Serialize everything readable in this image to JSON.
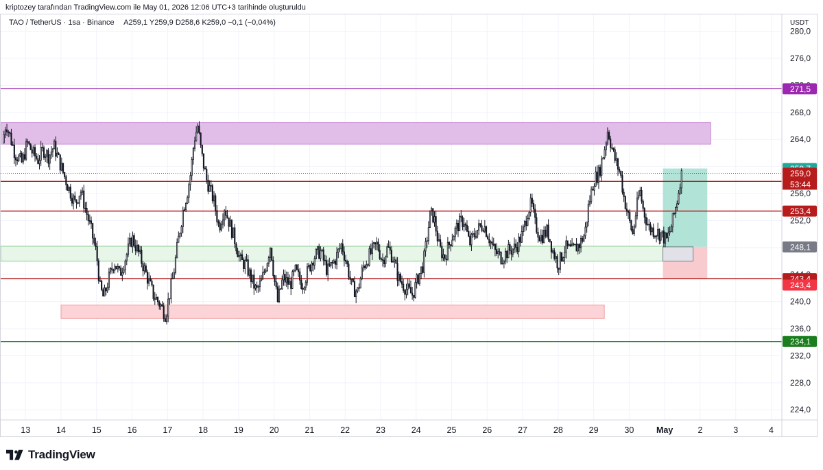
{
  "caption": "kriptozey tarafından TradingView.com ile May 01, 2026 12:06 UTC+3 tarihinde oluşturuldu",
  "legend": {
    "symbol": "TAO / TetherUS · 1sa · Binance",
    "ohlc": "A259,1  Y259,9  D258,6  K259,0  −0,1 (−0,04%)"
  },
  "footer": {
    "brand": "TradingView",
    "logo_icon": "tradingview-logo-icon"
  },
  "chart_data": {
    "type": "candlestick",
    "symbol": "TAO / TetherUS",
    "interval": "1sa",
    "exchange": "Binance",
    "currency": "USDT",
    "y_range": [
      222.5,
      282.5
    ],
    "y_ticks": [
      {
        "v": 280,
        "t": "280,0"
      },
      {
        "v": 276,
        "t": "276,0"
      },
      {
        "v": 272,
        "t": "272,0"
      },
      {
        "v": 268,
        "t": "268,0"
      },
      {
        "v": 264,
        "t": "264,0"
      },
      {
        "v": 260,
        "t": "260,0"
      },
      {
        "v": 256,
        "t": "256,0"
      },
      {
        "v": 252,
        "t": "252,0"
      },
      {
        "v": 248,
        "t": "248,0"
      },
      {
        "v": 244,
        "t": "244,0"
      },
      {
        "v": 240,
        "t": "240,0"
      },
      {
        "v": 236,
        "t": "236,0"
      },
      {
        "v": 232,
        "t": "232,0"
      },
      {
        "v": 228,
        "t": "228,0"
      },
      {
        "v": 224,
        "t": "224,0"
      }
    ],
    "x_range": [
      12.3,
      34.3
    ],
    "x_ticks": [
      {
        "v": 13,
        "t": "13"
      },
      {
        "v": 14,
        "t": "14"
      },
      {
        "v": 15,
        "t": "15"
      },
      {
        "v": 16,
        "t": "16"
      },
      {
        "v": 17,
        "t": "17"
      },
      {
        "v": 18,
        "t": "18"
      },
      {
        "v": 19,
        "t": "19"
      },
      {
        "v": 20,
        "t": "20"
      },
      {
        "v": 21,
        "t": "21"
      },
      {
        "v": 22,
        "t": "22"
      },
      {
        "v": 23,
        "t": "23"
      },
      {
        "v": 24,
        "t": "24"
      },
      {
        "v": 25,
        "t": "25"
      },
      {
        "v": 26,
        "t": "26"
      },
      {
        "v": 27,
        "t": "27"
      },
      {
        "v": 28,
        "t": "28"
      },
      {
        "v": 29,
        "t": "29"
      },
      {
        "v": 30,
        "t": "30"
      },
      {
        "v": 31,
        "t": "May",
        "bold": true
      },
      {
        "v": 32,
        "t": "2"
      },
      {
        "v": 33,
        "t": "3"
      },
      {
        "v": 34,
        "t": "4"
      }
    ],
    "price_path": [
      [
        12.35,
        263.5
      ],
      [
        12.45,
        266.5
      ],
      [
        12.7,
        262.0
      ],
      [
        12.9,
        260.5
      ],
      [
        13.05,
        263.5
      ],
      [
        13.2,
        262.0
      ],
      [
        13.35,
        261.0
      ],
      [
        13.5,
        262.5
      ],
      [
        13.65,
        261.5
      ],
      [
        13.8,
        263.0
      ],
      [
        14.0,
        260.0
      ],
      [
        14.2,
        257.0
      ],
      [
        14.4,
        254.5
      ],
      [
        14.55,
        256.5
      ],
      [
        14.7,
        253.5
      ],
      [
        14.85,
        250.5
      ],
      [
        15.0,
        247.0
      ],
      [
        15.1,
        242.0
      ],
      [
        15.2,
        240.5
      ],
      [
        15.35,
        243.5
      ],
      [
        15.5,
        246.0
      ],
      [
        15.65,
        244.0
      ],
      [
        15.85,
        247.0
      ],
      [
        16.0,
        249.5
      ],
      [
        16.2,
        247.0
      ],
      [
        16.4,
        244.0
      ],
      [
        16.6,
        241.0
      ],
      [
        16.8,
        239.5
      ],
      [
        16.95,
        238.0
      ],
      [
        17.05,
        241.0
      ],
      [
        17.15,
        243.5
      ],
      [
        17.3,
        249.0
      ],
      [
        17.45,
        254.0
      ],
      [
        17.55,
        256.0
      ],
      [
        17.65,
        259.0
      ],
      [
        17.75,
        264.0
      ],
      [
        17.85,
        266.0
      ],
      [
        17.95,
        262.0
      ],
      [
        18.1,
        258.0
      ],
      [
        18.3,
        255.0
      ],
      [
        18.45,
        251.0
      ],
      [
        18.6,
        254.0
      ],
      [
        18.75,
        251.5
      ],
      [
        18.9,
        249.0
      ],
      [
        19.05,
        246.0
      ],
      [
        19.2,
        245.5
      ],
      [
        19.35,
        243.5
      ],
      [
        19.5,
        241.5
      ],
      [
        19.65,
        243.0
      ],
      [
        19.8,
        246.0
      ],
      [
        19.9,
        248.5
      ],
      [
        20.0,
        243.5
      ],
      [
        20.1,
        240.0
      ],
      [
        20.25,
        243.5
      ],
      [
        20.45,
        242.5
      ],
      [
        20.6,
        244.5
      ],
      [
        20.8,
        242.5
      ],
      [
        20.95,
        244.5
      ],
      [
        21.1,
        246.5
      ],
      [
        21.3,
        247.5
      ],
      [
        21.5,
        244.5
      ],
      [
        21.7,
        246.0
      ],
      [
        21.9,
        248.5
      ],
      [
        22.05,
        245.5
      ],
      [
        22.2,
        242.0
      ],
      [
        22.35,
        241.5
      ],
      [
        22.5,
        245.0
      ],
      [
        22.7,
        247.0
      ],
      [
        22.9,
        248.5
      ],
      [
        23.05,
        246.0
      ],
      [
        23.2,
        248.0
      ],
      [
        23.35,
        246.5
      ],
      [
        23.5,
        243.5
      ],
      [
        23.7,
        242.0
      ],
      [
        23.9,
        241.0
      ],
      [
        24.05,
        243.5
      ],
      [
        24.2,
        245.5
      ],
      [
        24.4,
        253.0
      ],
      [
        24.5,
        252.5
      ],
      [
        24.65,
        248.0
      ],
      [
        24.8,
        246.5
      ],
      [
        25.0,
        249.5
      ],
      [
        25.2,
        251.5
      ],
      [
        25.35,
        252.0
      ],
      [
        25.5,
        248.5
      ],
      [
        25.7,
        250.5
      ],
      [
        25.9,
        251.5
      ],
      [
        26.05,
        249.5
      ],
      [
        26.2,
        247.5
      ],
      [
        26.4,
        246.5
      ],
      [
        26.6,
        247.5
      ],
      [
        26.8,
        248.0
      ],
      [
        27.0,
        250.0
      ],
      [
        27.15,
        253.5
      ],
      [
        27.25,
        254.5
      ],
      [
        27.35,
        251.5
      ],
      [
        27.5,
        249.5
      ],
      [
        27.7,
        250.5
      ],
      [
        27.85,
        247.5
      ],
      [
        28.0,
        245.5
      ],
      [
        28.2,
        248.0
      ],
      [
        28.4,
        247.5
      ],
      [
        28.6,
        248.5
      ],
      [
        28.75,
        250.0
      ],
      [
        28.85,
        254.0
      ],
      [
        29.0,
        258.0
      ],
      [
        29.15,
        259.0
      ],
      [
        29.3,
        262.5
      ],
      [
        29.4,
        265.5
      ],
      [
        29.5,
        263.0
      ],
      [
        29.6,
        261.0
      ],
      [
        29.75,
        259.0
      ],
      [
        29.85,
        255.5
      ],
      [
        30.0,
        252.0
      ],
      [
        30.1,
        250.0
      ],
      [
        30.2,
        253.5
      ],
      [
        30.3,
        256.5
      ],
      [
        30.4,
        253.5
      ],
      [
        30.55,
        251.0
      ],
      [
        30.7,
        250.5
      ],
      [
        30.9,
        250.0
      ],
      [
        31.05,
        249.0
      ],
      [
        31.15,
        250.5
      ],
      [
        31.25,
        252.5
      ],
      [
        31.35,
        255.0
      ],
      [
        31.45,
        258.5
      ],
      [
        31.5,
        259.0
      ]
    ],
    "levels": [
      {
        "price": 271.5,
        "label": "271,5",
        "color": "#9c27b0",
        "bg": "#9c27b0"
      },
      {
        "price": 257.8,
        "label": "257,8",
        "color": "#b71c1c",
        "bg": "#b71c1c"
      },
      {
        "price": 253.4,
        "label": "253,4",
        "color": "#b71c1c",
        "bg": "#b71c1c"
      },
      {
        "price": 243.4,
        "label": "243,4",
        "color": "#b71c1c",
        "bg": "#b71c1c"
      },
      {
        "price": 234.1,
        "label": "234,1",
        "color": "#1b7e1e",
        "bg": "#1b7e1e"
      }
    ],
    "zones": [
      {
        "from_x": 12.3,
        "to_x": 32.3,
        "top": 266.5,
        "bottom": 263.3,
        "fill": "#e1bee7",
        "stroke": "#ce93d8"
      },
      {
        "from_x": 12.3,
        "to_x": 31.8,
        "top": 248.2,
        "bottom": 246.0,
        "fill": "#e8f5e9",
        "stroke": "#81c784"
      },
      {
        "from_x": 14.0,
        "to_x": 29.3,
        "top": 239.5,
        "bottom": 237.5,
        "fill": "#fcd3d6",
        "stroke": "#ef9a9a"
      }
    ],
    "position": {
      "entry_x": 30.95,
      "exit_x": 32.2,
      "entry": 248.1,
      "target": 259.7,
      "stop": 243.4,
      "entry_label": "248,1",
      "target_label": "259,7",
      "stop_label": "243,4"
    },
    "last_price": {
      "value": 259.0,
      "label": "259,0",
      "countdown": "53:44",
      "color": "#b71c1c"
    },
    "colors": {
      "up": "#ffffff",
      "down": "#131722",
      "outline": "#131722",
      "grid": "#f0f3fa",
      "axis_text": "#131722"
    }
  }
}
